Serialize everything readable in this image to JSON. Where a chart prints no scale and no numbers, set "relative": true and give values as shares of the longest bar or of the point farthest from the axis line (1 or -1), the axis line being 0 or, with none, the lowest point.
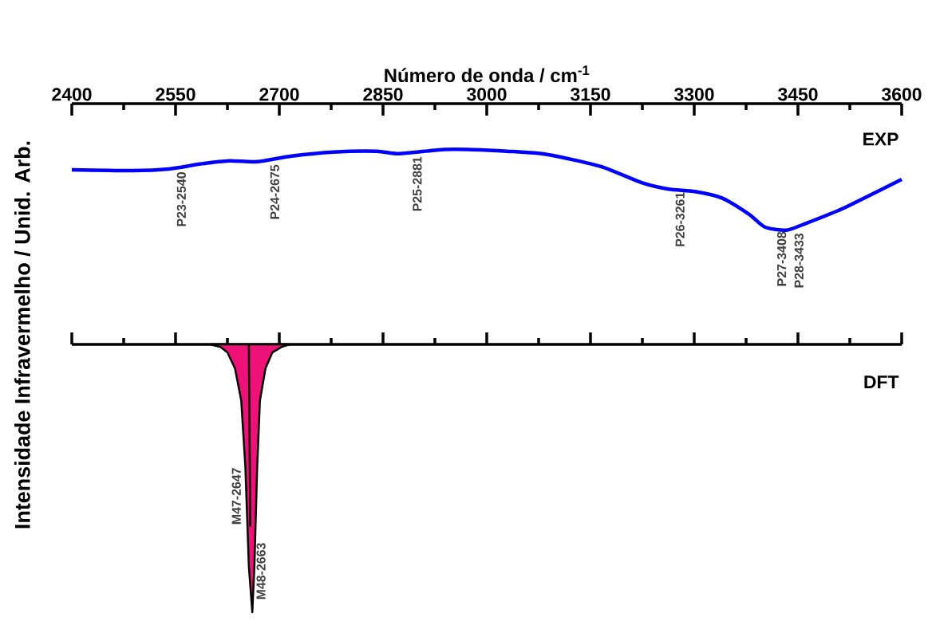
{
  "chart_data": [
    {
      "type": "line",
      "relative": true,
      "xlabel": "Número de onda / cm$^{-1}$",
      "ylabel": "Intensidade Infravermelho / Unid. Arb.",
      "xlim": [
        2400,
        3600
      ],
      "xticks": [
        2400,
        2550,
        2700,
        2850,
        3000,
        3150,
        3300,
        3450,
        3600
      ],
      "series": [
        {
          "name": "EXP",
          "color": "#0000ff",
          "x": [
            2400,
            2487,
            2540,
            2585,
            2627,
            2668,
            2718,
            2778,
            2841,
            2873,
            2935,
            2980,
            3029,
            3087,
            3165,
            3224,
            3263,
            3301,
            3340,
            3379,
            3402,
            3433,
            3457,
            3515,
            3600
          ],
          "values": [
            0.75,
            0.74,
            0.76,
            0.82,
            0.86,
            0.85,
            0.92,
            0.97,
            0.98,
            0.95,
            1,
            1,
            0.98,
            0.94,
            0.79,
            0.59,
            0.51,
            0.48,
            0.4,
            0.2,
            0.04,
            0,
            0.07,
            0.27,
            0.63
          ]
        }
      ],
      "annotations": [
        {
          "text": "P23-2540",
          "x": 2540,
          "y": 0.76
        },
        {
          "text": "P24-2675",
          "x": 2675,
          "y": 0.85
        },
        {
          "text": "P25-2881",
          "x": 2881,
          "y": 0.95
        },
        {
          "text": "P26-3261",
          "x": 3261,
          "y": 0.51
        },
        {
          "text": "P27-3408",
          "x": 3408,
          "y": 0.02
        },
        {
          "text": "P28-3433",
          "x": 3433,
          "y": 0
        }
      ]
    },
    {
      "type": "area",
      "relative": true,
      "tick_labels": false,
      "xlim": [
        2400,
        3600
      ],
      "xticks": [
        2400,
        2550,
        2700,
        2850,
        3000,
        3150,
        3300,
        3450,
        3600
      ],
      "series": [
        {
          "name": "DFT",
          "color": "#ee1177",
          "x": [
            2600,
            2615,
            2625,
            2636,
            2645,
            2651,
            2656,
            2661,
            2664,
            2668,
            2672,
            2680,
            2690,
            2703,
            2715
          ],
          "values": [
            0,
            -0.01,
            -0.03,
            -0.09,
            -0.21,
            -0.46,
            -0.83,
            -1,
            -0.83,
            -0.46,
            -0.21,
            -0.09,
            -0.03,
            -0.01,
            0
          ]
        },
        {
          "type": "line",
          "color": "#000000",
          "x": [
            2656,
            2658
          ],
          "values": [
            0,
            -0.68
          ]
        }
      ],
      "annotations": [
        {
          "text": "M47-2647",
          "x": 2647,
          "y": -0.68
        },
        {
          "text": "M48-2663",
          "x": 2663,
          "y": -1
        }
      ]
    }
  ]
}
